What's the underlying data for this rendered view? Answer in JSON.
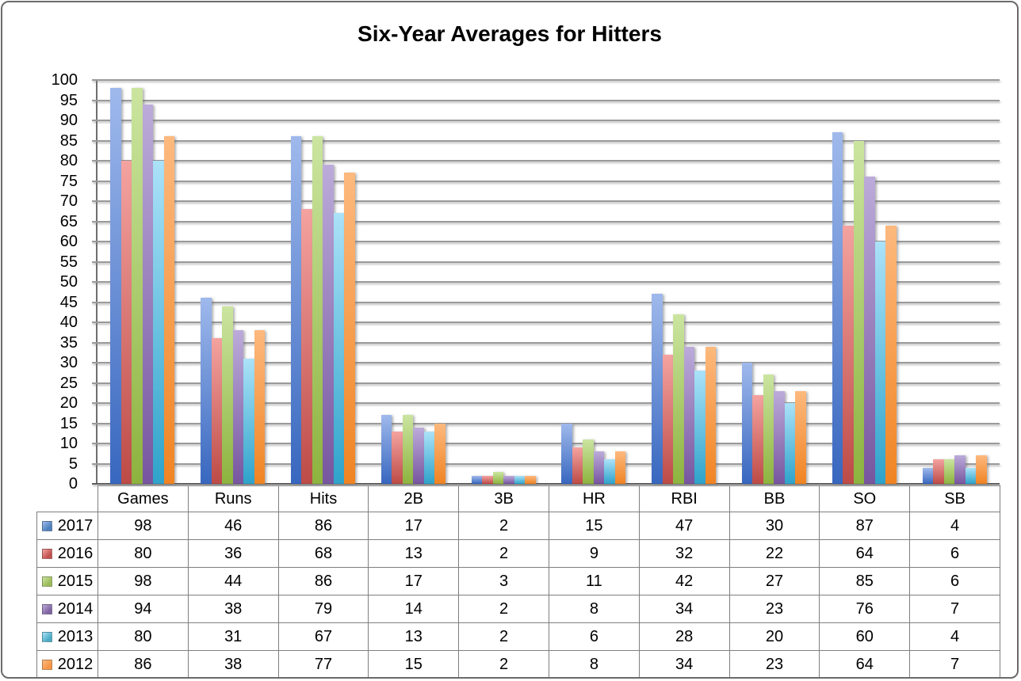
{
  "chart_data": {
    "type": "bar",
    "title": "Six-Year Averages for Hitters",
    "categories": [
      "Games",
      "Runs",
      "Hits",
      "2B",
      "3B",
      "HR",
      "RBI",
      "BB",
      "SO",
      "SB"
    ],
    "series": [
      {
        "name": "2017",
        "values": [
          98,
          46,
          86,
          17,
          2,
          15,
          47,
          30,
          87,
          4
        ],
        "color_light": "#9FB9EC",
        "color_dark": "#3867BF",
        "key_color": "#4F81BD"
      },
      {
        "name": "2016",
        "values": [
          80,
          36,
          68,
          13,
          2,
          9,
          32,
          22,
          64,
          6
        ],
        "color_light": "#F4A3A0",
        "color_dark": "#BD4B47",
        "key_color": "#C0504D"
      },
      {
        "name": "2015",
        "values": [
          98,
          44,
          86,
          17,
          3,
          11,
          42,
          27,
          85,
          6
        ],
        "color_light": "#CBE5A0",
        "color_dark": "#8DB33F",
        "key_color": "#9BBB59"
      },
      {
        "name": "2014",
        "values": [
          94,
          38,
          79,
          14,
          2,
          8,
          34,
          23,
          76,
          7
        ],
        "color_light": "#BCABDA",
        "color_dark": "#77569F",
        "key_color": "#8064A2"
      },
      {
        "name": "2013",
        "values": [
          80,
          31,
          67,
          13,
          2,
          6,
          28,
          20,
          60,
          4
        ],
        "color_light": "#ABE2F8",
        "color_dark": "#2FA3CA",
        "key_color": "#4BACC6"
      },
      {
        "name": "2012",
        "values": [
          86,
          38,
          77,
          15,
          2,
          8,
          34,
          23,
          64,
          7
        ],
        "color_light": "#FDB97E",
        "color_dark": "#F08423",
        "key_color": "#F79646"
      }
    ],
    "xlabel": "",
    "ylabel": "",
    "ylim": [
      0,
      100
    ],
    "yticks": [
      0,
      5,
      10,
      15,
      20,
      25,
      30,
      35,
      40,
      45,
      50,
      55,
      60,
      65,
      70,
      75,
      80,
      85,
      90,
      95,
      100
    ],
    "grid": true,
    "legend_position": "data-table-left-column"
  }
}
